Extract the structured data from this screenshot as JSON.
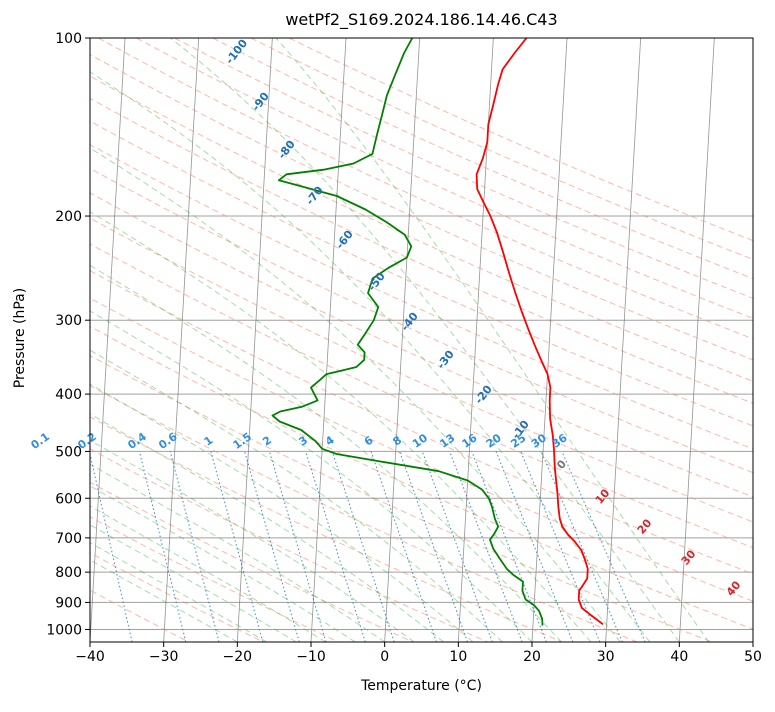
{
  "chart_data": {
    "type": "line",
    "title": "wetPf2_S169.2024.186.14.46.C43",
    "xlabel": "Temperature (°C)",
    "ylabel": "Pressure (hPa)",
    "xlim": [
      -40,
      50
    ],
    "ylim": [
      1050,
      100
    ],
    "y_scale": "log",
    "grid": true,
    "x_ticks": [
      -40,
      -30,
      -20,
      -10,
      0,
      10,
      20,
      30,
      40,
      50
    ],
    "y_ticks": [
      100,
      200,
      300,
      400,
      500,
      600,
      700,
      800,
      900,
      1000
    ],
    "series": [
      {
        "color": "#ff0000",
        "points": [
          [
            29.5,
            980
          ],
          [
            28.5,
            960
          ],
          [
            27.5,
            940
          ],
          [
            26.5,
            920
          ],
          [
            26.0,
            890
          ],
          [
            26.0,
            860
          ],
          [
            26.5,
            840
          ],
          [
            27.0,
            820
          ],
          [
            27.0,
            790
          ],
          [
            26.5,
            760
          ],
          [
            26.0,
            735
          ],
          [
            25.0,
            710
          ],
          [
            24.0,
            690
          ],
          [
            23.2,
            670
          ],
          [
            22.8,
            650
          ],
          [
            22.5,
            620
          ],
          [
            22.3,
            590
          ],
          [
            22.0,
            560
          ],
          [
            21.7,
            530
          ],
          [
            21.5,
            500
          ],
          [
            21.2,
            470
          ],
          [
            20.7,
            440
          ],
          [
            20.5,
            410
          ],
          [
            20.5,
            390
          ],
          [
            20.0,
            370
          ],
          [
            19.0,
            350
          ],
          [
            18.0,
            330
          ],
          [
            17.0,
            310
          ],
          [
            16.0,
            290
          ],
          [
            15.0,
            270
          ],
          [
            14.0,
            250
          ],
          [
            13.0,
            230
          ],
          [
            12.0,
            213
          ],
          [
            11.0,
            200
          ],
          [
            10.0,
            190
          ],
          [
            9.0,
            180
          ],
          [
            8.8,
            170
          ],
          [
            9.5,
            160
          ],
          [
            10.0,
            150
          ],
          [
            10.0,
            140
          ],
          [
            10.5,
            130
          ],
          [
            11.0,
            120
          ],
          [
            11.5,
            113
          ],
          [
            13.0,
            106
          ],
          [
            14.5,
            100
          ]
        ]
      },
      {
        "color": "#008000",
        "points": [
          [
            21.3,
            985
          ],
          [
            21.2,
            960
          ],
          [
            20.7,
            930
          ],
          [
            20.0,
            910
          ],
          [
            18.8,
            890
          ],
          [
            18.3,
            860
          ],
          [
            18.3,
            830
          ],
          [
            17.0,
            810
          ],
          [
            16.0,
            790
          ],
          [
            15.0,
            760
          ],
          [
            14.0,
            730
          ],
          [
            13.5,
            705
          ],
          [
            14.0,
            690
          ],
          [
            14.5,
            670
          ],
          [
            14.0,
            650
          ],
          [
            13.5,
            620
          ],
          [
            13.0,
            600
          ],
          [
            12.0,
            580
          ],
          [
            10.0,
            560
          ],
          [
            6.0,
            540
          ],
          [
            -2.0,
            520
          ],
          [
            -8.0,
            505
          ],
          [
            -10.0,
            495
          ],
          [
            -11.0,
            480
          ],
          [
            -13.0,
            460
          ],
          [
            -16.0,
            445
          ],
          [
            -17.0,
            435
          ],
          [
            -16.0,
            428
          ],
          [
            -13.0,
            420
          ],
          [
            -11.0,
            410
          ],
          [
            -11.5,
            400
          ],
          [
            -12.0,
            390
          ],
          [
            -11.0,
            380
          ],
          [
            -10.0,
            370
          ],
          [
            -8.0,
            365
          ],
          [
            -6.0,
            360
          ],
          [
            -5.0,
            350
          ],
          [
            -5.0,
            340
          ],
          [
            -6.0,
            330
          ],
          [
            -5.0,
            315
          ],
          [
            -4.0,
            300
          ],
          [
            -3.5,
            285
          ],
          [
            -5.0,
            270
          ],
          [
            -4.5,
            255
          ],
          [
            -2.5,
            245
          ],
          [
            0.0,
            235
          ],
          [
            0.5,
            225
          ],
          [
            -0.5,
            215
          ],
          [
            -3.0,
            205
          ],
          [
            -6.0,
            195
          ],
          [
            -10.0,
            185
          ],
          [
            -15.0,
            178
          ],
          [
            -18.0,
            174
          ],
          [
            -17.0,
            170
          ],
          [
            -12.0,
            167
          ],
          [
            -8.0,
            163
          ],
          [
            -5.5,
            157
          ],
          [
            -5.0,
            145
          ],
          [
            -4.5,
            135
          ],
          [
            -4.0,
            125
          ],
          [
            -3.0,
            115
          ],
          [
            -2.0,
            106
          ],
          [
            -1.0,
            100
          ]
        ]
      }
    ],
    "dry_adiabat_labels": [
      "-100",
      "-90",
      "-80",
      "-70",
      "-60",
      "-50",
      "-40",
      "-30",
      "-20",
      "-10"
    ],
    "dry_adiabat_label_color": "#1f6fb4",
    "mixing_ratio_labels": [
      "0.1",
      "0.2",
      "0.4",
      "0.6",
      "1",
      "1.5",
      "2",
      "3",
      "4",
      "6",
      "8",
      "10",
      "13",
      "16",
      "20",
      "25",
      "30",
      "36"
    ],
    "mixing_ratio_label_color": "#2f8ee0",
    "moist_adiabat_labels": [
      "0",
      "10",
      "20",
      "30",
      "40"
    ],
    "moist_adiabat_label_colors": [
      "#777777",
      "#d62728",
      "#d62728",
      "#d62728",
      "#d62728"
    ],
    "colors": {
      "dry_adiabat": "#fa8060",
      "moist_adiabat": "#3cb043",
      "mixing_ratio": "#1f77b4",
      "isotherm": "#707070",
      "isobar": "#a0a0a0"
    }
  }
}
